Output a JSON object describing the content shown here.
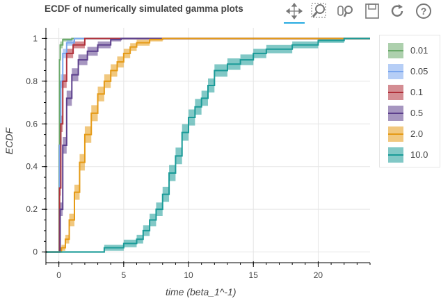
{
  "chart_data": {
    "type": "line",
    "title": "ECDF of numerically simulated gamma plots",
    "xlabel": "time (beta_1^-1)",
    "ylabel": "ECDF",
    "xlim": [
      -1,
      24
    ],
    "ylim": [
      -0.05,
      1.05
    ],
    "xticks": [
      "0",
      "5",
      "10",
      "15",
      "20"
    ],
    "yticks": [
      "0",
      "0.2",
      "0.4",
      "0.6",
      "0.8",
      "1"
    ],
    "grid": true,
    "legend_position": "right",
    "series": [
      {
        "name": "0.01",
        "color": "#6aaa6a",
        "points": [
          [
            -1,
            0
          ],
          [
            0,
            0
          ],
          [
            0.02,
            0.5
          ],
          [
            0.05,
            0.9
          ],
          [
            0.1,
            0.97
          ],
          [
            0.3,
            0.995
          ],
          [
            1,
            1
          ],
          [
            24,
            1
          ]
        ]
      },
      {
        "name": "0.05",
        "color": "#7aa6ee",
        "points": [
          [
            -1,
            0
          ],
          [
            0,
            0
          ],
          [
            0.05,
            0.5
          ],
          [
            0.15,
            0.8
          ],
          [
            0.3,
            0.93
          ],
          [
            0.6,
            0.98
          ],
          [
            1.2,
            1
          ],
          [
            24,
            1
          ]
        ]
      },
      {
        "name": "0.1",
        "color": "#b0303a",
        "points": [
          [
            -1,
            0
          ],
          [
            0,
            0
          ],
          [
            0.05,
            0.3
          ],
          [
            0.15,
            0.6
          ],
          [
            0.3,
            0.8
          ],
          [
            0.6,
            0.93
          ],
          [
            1.1,
            0.97
          ],
          [
            2,
            1
          ],
          [
            24,
            1
          ]
        ]
      },
      {
        "name": "0.5",
        "color": "#5c3f8c",
        "points": [
          [
            -1,
            0
          ],
          [
            0,
            0
          ],
          [
            0.1,
            0.2
          ],
          [
            0.3,
            0.5
          ],
          [
            0.6,
            0.72
          ],
          [
            1,
            0.83
          ],
          [
            1.5,
            0.9
          ],
          [
            2.2,
            0.94
          ],
          [
            3,
            0.97
          ],
          [
            4,
            0.995
          ],
          [
            4.8,
            1
          ],
          [
            24,
            1
          ]
        ]
      },
      {
        "name": "2.0",
        "color": "#e59a16",
        "points": [
          [
            -1,
            0
          ],
          [
            0,
            0
          ],
          [
            0.2,
            0.02
          ],
          [
            0.5,
            0.06
          ],
          [
            0.8,
            0.15
          ],
          [
            1.2,
            0.28
          ],
          [
            1.6,
            0.42
          ],
          [
            2.0,
            0.55
          ],
          [
            2.5,
            0.65
          ],
          [
            3.0,
            0.74
          ],
          [
            3.5,
            0.8
          ],
          [
            4,
            0.85
          ],
          [
            4.5,
            0.89
          ],
          [
            5,
            0.93
          ],
          [
            5.5,
            0.96
          ],
          [
            6,
            0.98
          ],
          [
            7,
            0.995
          ],
          [
            8,
            1
          ],
          [
            24,
            1
          ]
        ]
      },
      {
        "name": "10.0",
        "color": "#1a9b98",
        "points": [
          [
            -1,
            0
          ],
          [
            3,
            0
          ],
          [
            3.5,
            0.02
          ],
          [
            5,
            0.04
          ],
          [
            6,
            0.06
          ],
          [
            6.5,
            0.1
          ],
          [
            7,
            0.15
          ],
          [
            7.5,
            0.2
          ],
          [
            8,
            0.27
          ],
          [
            8.5,
            0.37
          ],
          [
            9,
            0.45
          ],
          [
            9.5,
            0.56
          ],
          [
            10,
            0.63
          ],
          [
            10.5,
            0.68
          ],
          [
            11,
            0.72
          ],
          [
            11.5,
            0.78
          ],
          [
            12,
            0.85
          ],
          [
            13,
            0.88
          ],
          [
            14,
            0.9
          ],
          [
            15,
            0.93
          ],
          [
            16,
            0.95
          ],
          [
            18,
            0.97
          ],
          [
            20,
            0.99
          ],
          [
            22,
            1
          ],
          [
            24,
            1
          ]
        ]
      }
    ]
  },
  "legend": {
    "items": [
      {
        "label": "0.01",
        "color": "#6aaa6a"
      },
      {
        "label": "0.05",
        "color": "#7aa6ee"
      },
      {
        "label": "0.1",
        "color": "#b0303a"
      },
      {
        "label": "0.5",
        "color": "#5c3f8c"
      },
      {
        "label": "2.0",
        "color": "#e59a16"
      },
      {
        "label": "10.0",
        "color": "#1a9b98"
      }
    ]
  },
  "toolbar": {
    "tools": [
      "pan-icon",
      "box-zoom-icon",
      "wheel-zoom-icon",
      "save-icon",
      "reset-icon",
      "help-icon"
    ],
    "active_tool": "pan-icon"
  }
}
